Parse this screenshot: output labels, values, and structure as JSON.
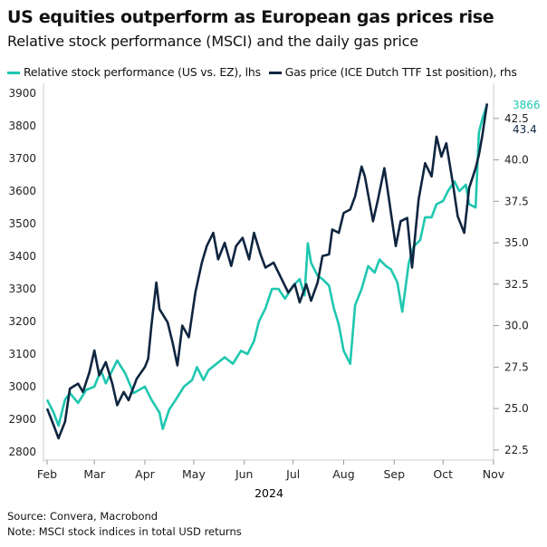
{
  "chart_data": {
    "type": "line",
    "title": "US equities outperform as European gas prices rise",
    "subtitle": "Relative stock performance (MSCI) and the daily gas price",
    "xlabel": "2024",
    "x_ticks": [
      "Feb",
      "Mar",
      "Apr",
      "May",
      "Jun",
      "Jul",
      "Aug",
      "Sep",
      "Oct",
      "Nov"
    ],
    "x_range": [
      "2024-02-01",
      "2024-11-01"
    ],
    "left_axis": {
      "range": [
        2780,
        3920
      ],
      "ticks": [
        2800,
        2900,
        3000,
        3100,
        3200,
        3300,
        3400,
        3500,
        3600,
        3700,
        3800,
        3900
      ]
    },
    "right_axis": {
      "range": [
        22.0,
        44.4
      ],
      "ticks": [
        "22.5",
        "25.0",
        "27.5",
        "30.0",
        "32.5",
        "35.0",
        "37.5",
        "40.0",
        "42.5"
      ]
    },
    "grid": false,
    "legend_position": "top",
    "series": [
      {
        "name": "Relative stock performance (US vs. EZ), lhs",
        "axis": "left",
        "color": "#1fc7b0",
        "last_label": "3866",
        "points": [
          [
            "2024-02-01",
            2960
          ],
          [
            "2024-02-05",
            2920
          ],
          [
            "2024-02-08",
            2880
          ],
          [
            "2024-02-12",
            2960
          ],
          [
            "2024-02-15",
            2980
          ],
          [
            "2024-02-20",
            2950
          ],
          [
            "2024-02-25",
            2990
          ],
          [
            "2024-03-01",
            3000
          ],
          [
            "2024-03-05",
            3050
          ],
          [
            "2024-03-08",
            3010
          ],
          [
            "2024-03-12",
            3050
          ],
          [
            "2024-03-15",
            3080
          ],
          [
            "2024-03-20",
            3040
          ],
          [
            "2024-03-25",
            2980
          ],
          [
            "2024-04-01",
            3000
          ],
          [
            "2024-04-05",
            2960
          ],
          [
            "2024-04-10",
            2920
          ],
          [
            "2024-04-12",
            2870
          ],
          [
            "2024-04-16",
            2930
          ],
          [
            "2024-04-20",
            2960
          ],
          [
            "2024-04-25",
            3000
          ],
          [
            "2024-04-30",
            3020
          ],
          [
            "2024-05-03",
            3060
          ],
          [
            "2024-05-07",
            3020
          ],
          [
            "2024-05-10",
            3050
          ],
          [
            "2024-05-15",
            3070
          ],
          [
            "2024-05-20",
            3090
          ],
          [
            "2024-05-25",
            3070
          ],
          [
            "2024-05-30",
            3110
          ],
          [
            "2024-06-03",
            3100
          ],
          [
            "2024-06-07",
            3140
          ],
          [
            "2024-06-10",
            3200
          ],
          [
            "2024-06-14",
            3240
          ],
          [
            "2024-06-18",
            3300
          ],
          [
            "2024-06-22",
            3300
          ],
          [
            "2024-06-26",
            3270
          ],
          [
            "2024-07-01",
            3310
          ],
          [
            "2024-07-05",
            3330
          ],
          [
            "2024-07-08",
            3280
          ],
          [
            "2024-07-10",
            3440
          ],
          [
            "2024-07-12",
            3380
          ],
          [
            "2024-07-16",
            3340
          ],
          [
            "2024-07-19",
            3330
          ],
          [
            "2024-07-23",
            3310
          ],
          [
            "2024-07-26",
            3240
          ],
          [
            "2024-07-29",
            3190
          ],
          [
            "2024-08-01",
            3110
          ],
          [
            "2024-08-05",
            3070
          ],
          [
            "2024-08-08",
            3250
          ],
          [
            "2024-08-12",
            3300
          ],
          [
            "2024-08-16",
            3370
          ],
          [
            "2024-08-20",
            3350
          ],
          [
            "2024-08-23",
            3390
          ],
          [
            "2024-08-27",
            3370
          ],
          [
            "2024-08-30",
            3360
          ],
          [
            "2024-09-03",
            3320
          ],
          [
            "2024-09-06",
            3230
          ],
          [
            "2024-09-10",
            3380
          ],
          [
            "2024-09-13",
            3430
          ],
          [
            "2024-09-17",
            3450
          ],
          [
            "2024-09-20",
            3520
          ],
          [
            "2024-09-24",
            3520
          ],
          [
            "2024-09-27",
            3560
          ],
          [
            "2024-10-01",
            3570
          ],
          [
            "2024-10-04",
            3600
          ],
          [
            "2024-10-08",
            3630
          ],
          [
            "2024-10-11",
            3600
          ],
          [
            "2024-10-15",
            3620
          ],
          [
            "2024-10-17",
            3560
          ],
          [
            "2024-10-21",
            3550
          ],
          [
            "2024-10-23",
            3780
          ],
          [
            "2024-10-25",
            3820
          ],
          [
            "2024-10-28",
            3866
          ]
        ]
      },
      {
        "name": "Gas price (ICE Dutch TTF 1st position), rhs",
        "axis": "right",
        "color": "#0f2540",
        "last_label": "43.4",
        "points": [
          [
            "2024-02-01",
            25.0
          ],
          [
            "2024-02-05",
            24.0
          ],
          [
            "2024-02-08",
            23.2
          ],
          [
            "2024-02-12",
            24.2
          ],
          [
            "2024-02-15",
            26.2
          ],
          [
            "2024-02-20",
            26.5
          ],
          [
            "2024-02-23",
            26.0
          ],
          [
            "2024-02-27",
            27.2
          ],
          [
            "2024-03-01",
            28.5
          ],
          [
            "2024-03-04",
            27.0
          ],
          [
            "2024-03-08",
            27.8
          ],
          [
            "2024-03-12",
            26.5
          ],
          [
            "2024-03-15",
            25.2
          ],
          [
            "2024-03-19",
            26.0
          ],
          [
            "2024-03-22",
            25.5
          ],
          [
            "2024-03-27",
            26.8
          ],
          [
            "2024-04-01",
            27.5
          ],
          [
            "2024-04-03",
            28.0
          ],
          [
            "2024-04-05",
            30.0
          ],
          [
            "2024-04-08",
            32.6
          ],
          [
            "2024-04-10",
            31.0
          ],
          [
            "2024-04-15",
            30.2
          ],
          [
            "2024-04-18",
            29.0
          ],
          [
            "2024-04-21",
            27.6
          ],
          [
            "2024-04-24",
            30.0
          ],
          [
            "2024-04-28",
            29.3
          ],
          [
            "2024-05-02",
            32.0
          ],
          [
            "2024-05-06",
            33.8
          ],
          [
            "2024-05-09",
            34.8
          ],
          [
            "2024-05-13",
            35.6
          ],
          [
            "2024-05-16",
            34.0
          ],
          [
            "2024-05-20",
            35.0
          ],
          [
            "2024-05-24",
            33.6
          ],
          [
            "2024-05-27",
            34.8
          ],
          [
            "2024-05-31",
            35.3
          ],
          [
            "2024-06-04",
            34.0
          ],
          [
            "2024-06-07",
            35.6
          ],
          [
            "2024-06-11",
            34.3
          ],
          [
            "2024-06-14",
            33.5
          ],
          [
            "2024-06-19",
            33.8
          ],
          [
            "2024-06-24",
            32.8
          ],
          [
            "2024-06-28",
            32.0
          ],
          [
            "2024-07-02",
            32.5
          ],
          [
            "2024-07-05",
            31.4
          ],
          [
            "2024-07-09",
            32.5
          ],
          [
            "2024-07-12",
            31.5
          ],
          [
            "2024-07-16",
            32.6
          ],
          [
            "2024-07-19",
            34.2
          ],
          [
            "2024-07-23",
            34.3
          ],
          [
            "2024-07-25",
            35.8
          ],
          [
            "2024-07-29",
            35.6
          ],
          [
            "2024-08-01",
            36.8
          ],
          [
            "2024-08-05",
            37.0
          ],
          [
            "2024-08-08",
            37.8
          ],
          [
            "2024-08-12",
            39.6
          ],
          [
            "2024-08-14",
            39.0
          ],
          [
            "2024-08-19",
            36.3
          ],
          [
            "2024-08-22",
            37.6
          ],
          [
            "2024-08-26",
            39.5
          ],
          [
            "2024-08-28",
            38.2
          ],
          [
            "2024-09-02",
            34.8
          ],
          [
            "2024-09-05",
            36.3
          ],
          [
            "2024-09-09",
            36.5
          ],
          [
            "2024-09-12",
            33.5
          ],
          [
            "2024-09-16",
            37.6
          ],
          [
            "2024-09-20",
            39.8
          ],
          [
            "2024-09-24",
            39.0
          ],
          [
            "2024-09-27",
            41.4
          ],
          [
            "2024-09-30",
            40.2
          ],
          [
            "2024-10-03",
            41.0
          ],
          [
            "2024-10-07",
            38.6
          ],
          [
            "2024-10-10",
            36.6
          ],
          [
            "2024-10-14",
            35.6
          ],
          [
            "2024-10-17",
            38.3
          ],
          [
            "2024-10-21",
            39.5
          ],
          [
            "2024-10-23",
            40.3
          ],
          [
            "2024-10-25",
            41.4
          ],
          [
            "2024-10-28",
            43.4
          ]
        ]
      }
    ]
  },
  "footer": {
    "source": "Source: Convera, Macrobond",
    "note": "Note: MSCI stock indices in total USD returns"
  }
}
